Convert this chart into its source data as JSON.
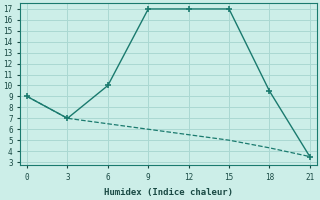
{
  "xlabel": "Humidex (Indice chaleur)",
  "line1_x": [
    0,
    3,
    6,
    9,
    12,
    15,
    18,
    21
  ],
  "line1_y": [
    9,
    7,
    10,
    17,
    17,
    17,
    9.5,
    3.5
  ],
  "line2_x": [
    0,
    3,
    6,
    9,
    12,
    15,
    18,
    21
  ],
  "line2_y": [
    9,
    7,
    6.5,
    6.0,
    5.5,
    5.0,
    4.3,
    3.5
  ],
  "line_color": "#1a7a6e",
  "bg_color": "#cceee8",
  "grid_color": "#aad8d2",
  "xlim": [
    -0.5,
    21.5
  ],
  "ylim": [
    2.7,
    17.5
  ],
  "xticks": [
    0,
    3,
    6,
    9,
    12,
    15,
    18,
    21
  ],
  "yticks": [
    3,
    4,
    5,
    6,
    7,
    8,
    9,
    10,
    11,
    12,
    13,
    14,
    15,
    16,
    17
  ],
  "xlabel_fontsize": 6.5,
  "tick_fontsize": 5.5
}
